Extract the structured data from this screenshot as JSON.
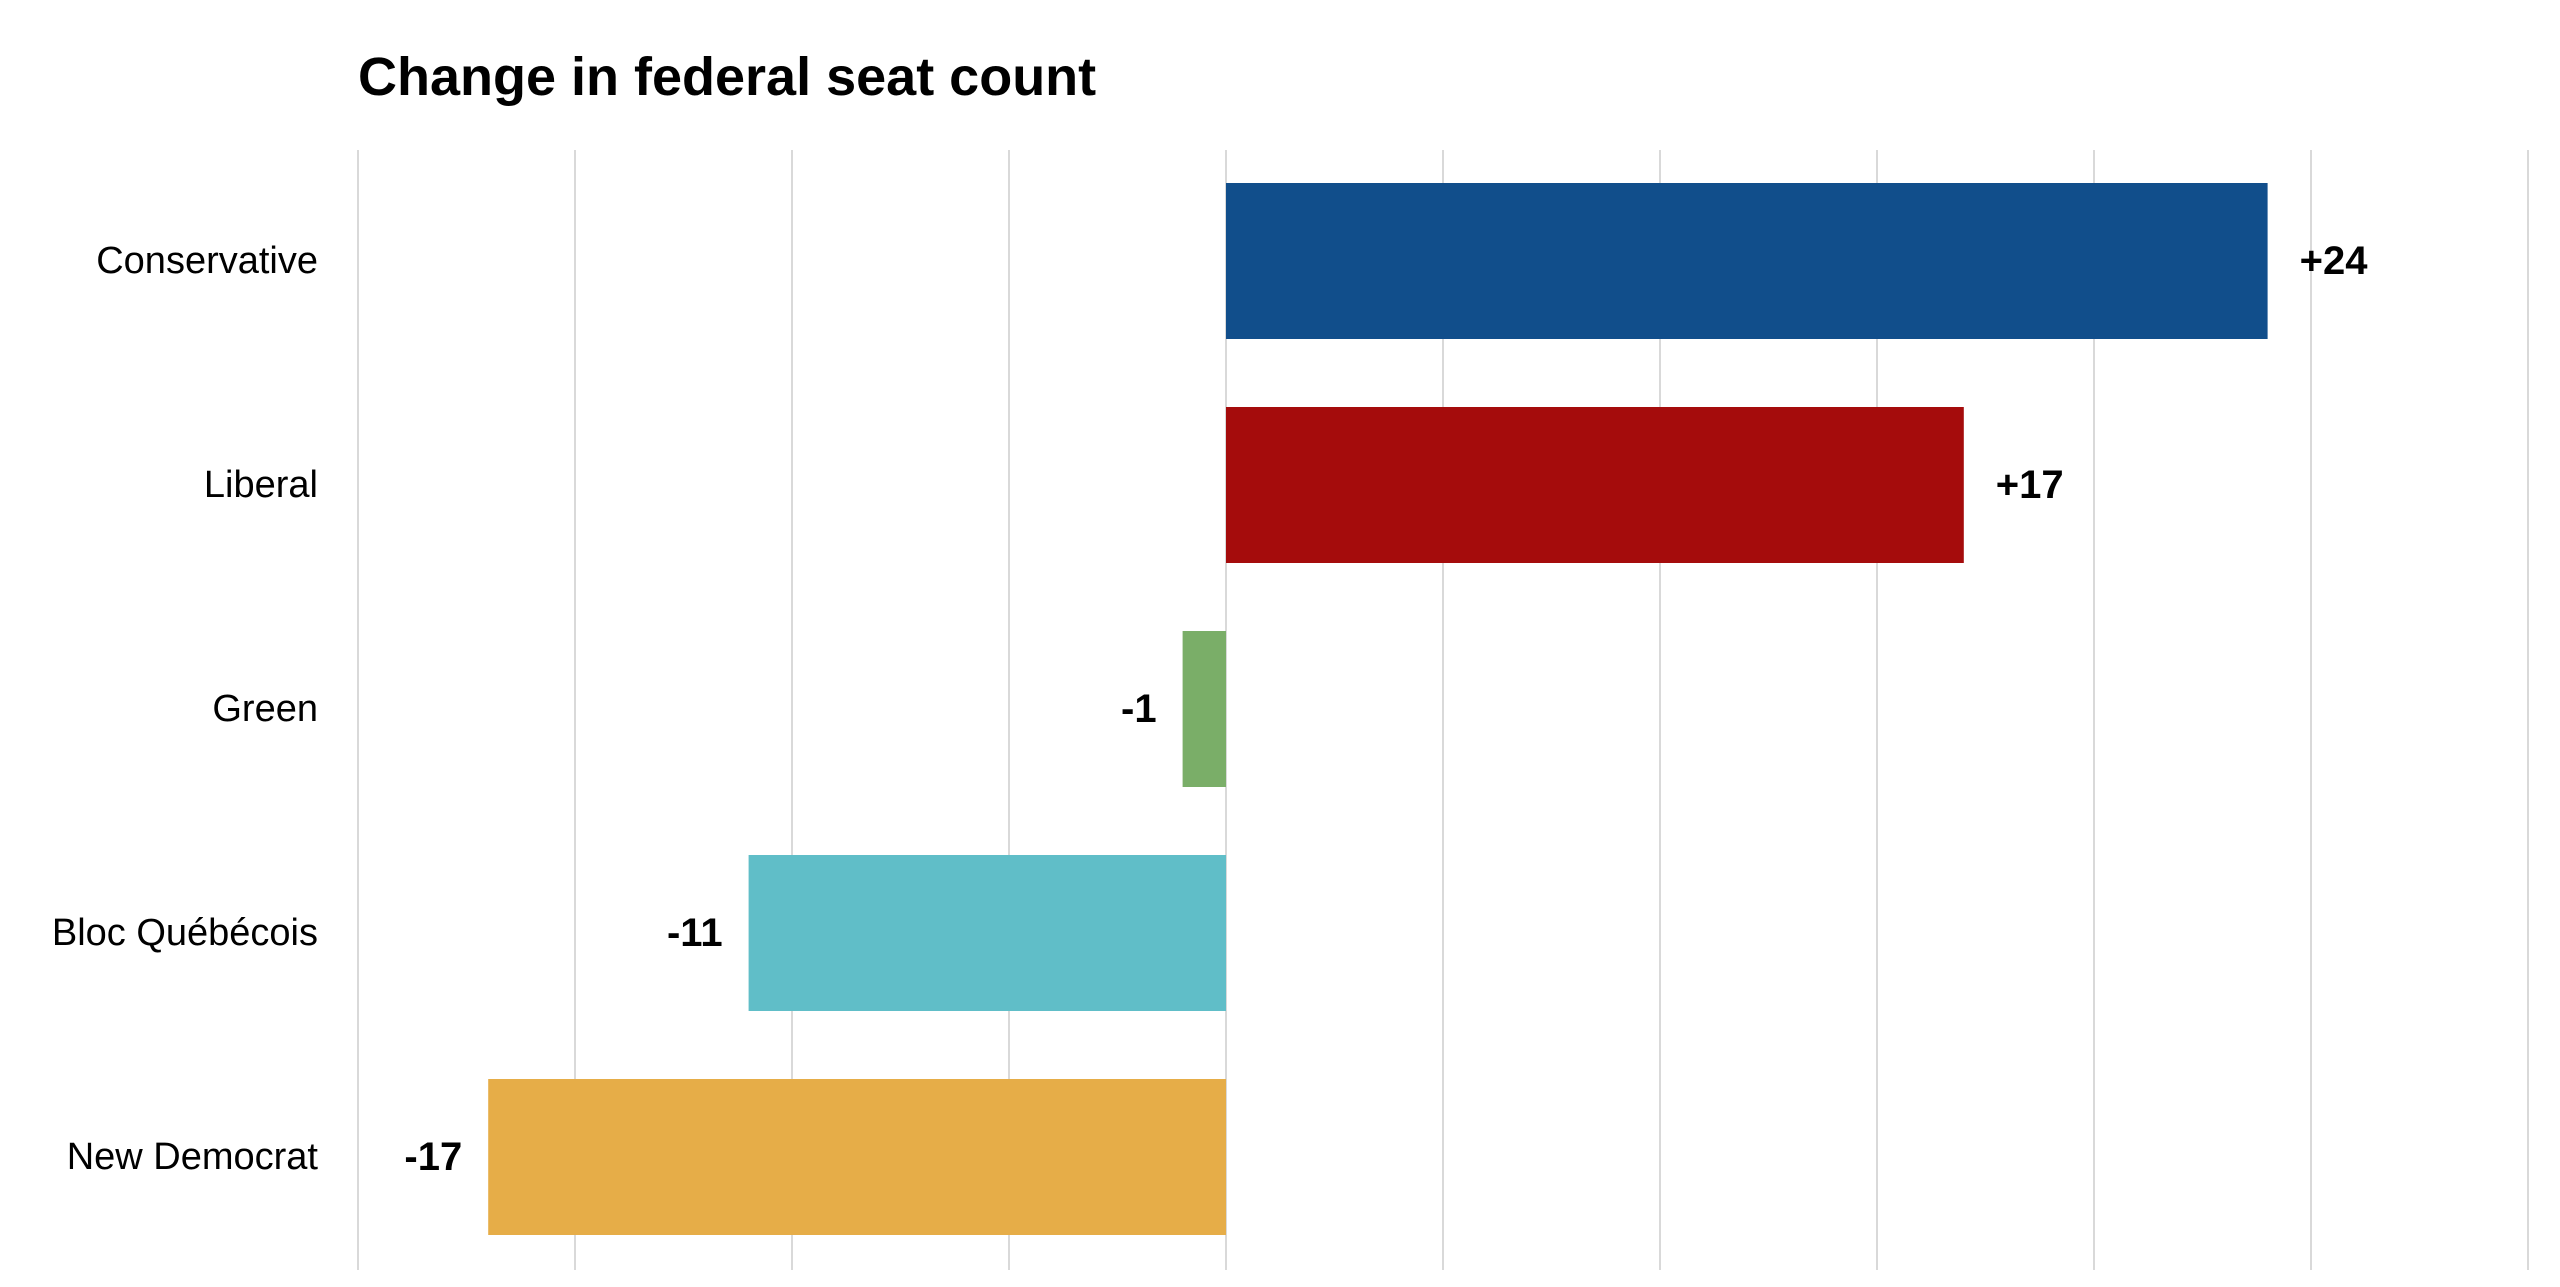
{
  "chart_data": {
    "type": "bar",
    "orientation": "horizontal",
    "title": "Change in federal seat count",
    "xlabel": "",
    "ylabel": "",
    "categories": [
      "Conservative",
      "Liberal",
      "Green",
      "Bloc Québécois",
      "New Democrat"
    ],
    "values": [
      24,
      17,
      -1,
      -11,
      -17
    ],
    "data_labels": [
      "+24",
      "+17",
      "-1",
      "-11",
      "-17"
    ],
    "colors": [
      "#114e8b",
      "#a50c0c",
      "#7aae68",
      "#60bec8",
      "#e6ad48"
    ],
    "xlim": [
      -20,
      30
    ],
    "x_gridline_step": 5,
    "grid": true,
    "legend": "none"
  }
}
